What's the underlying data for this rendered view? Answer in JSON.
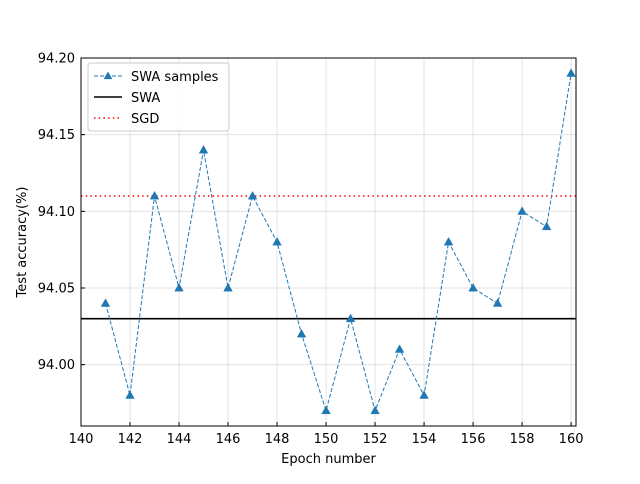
{
  "chart_data": {
    "type": "line",
    "title": "",
    "xlabel": "Epoch number",
    "ylabel": "Test accuracy(%)",
    "xlim": [
      140,
      160.2
    ],
    "ylim": [
      93.96,
      94.2
    ],
    "xticks": [
      140,
      142,
      144,
      146,
      148,
      150,
      152,
      154,
      156,
      158,
      160
    ],
    "yticks": [
      94.0,
      94.05,
      94.1,
      94.15,
      94.2
    ],
    "ytick_labels": [
      "94.00",
      "94.05",
      "94.10",
      "94.15",
      "94.20"
    ],
    "grid": true,
    "legend_position": "top-left",
    "series": [
      {
        "name": "SWA samples",
        "style": "dashed-line-triangle-markers",
        "color": "#1f77b4",
        "x": [
          141,
          142,
          143,
          144,
          145,
          146,
          147,
          148,
          149,
          150,
          151,
          152,
          153,
          154,
          155,
          156,
          157,
          158,
          159,
          160
        ],
        "y": [
          94.04,
          93.98,
          94.11,
          94.05,
          94.14,
          94.05,
          94.11,
          94.08,
          94.02,
          93.97,
          94.03,
          93.97,
          94.01,
          93.98,
          94.08,
          94.05,
          94.04,
          94.1,
          94.09,
          94.19
        ]
      },
      {
        "name": "SWA",
        "style": "solid-horizontal",
        "color": "#000000",
        "y": 94.03
      },
      {
        "name": "SGD",
        "style": "dotted-horizontal",
        "color": "#ff0000",
        "y": 94.11
      }
    ]
  }
}
